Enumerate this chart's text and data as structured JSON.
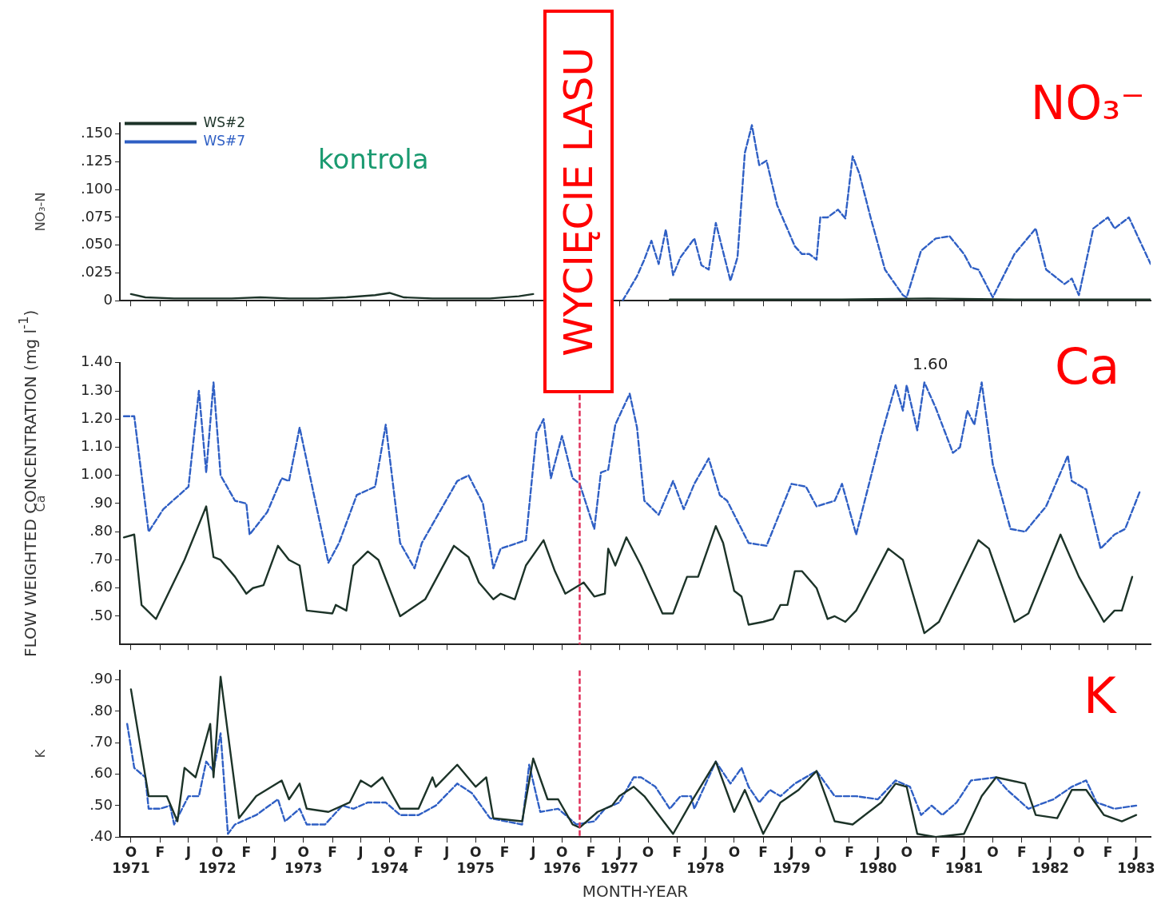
{
  "chart_data": [
    {
      "type": "line",
      "ylabel": "NO₃-N",
      "legend": "top left",
      "marker": "none",
      "tick_labels": "y",
      "annotations": [
        "NO₃⁻",
        "kontrola",
        "WYCIĘCIE LASU"
      ],
      "xlim": [
        "1971-08-15",
        "1983-08-01"
      ],
      "xticks": [
        "1971-10",
        "1972-02",
        "1972-06",
        "1972-10",
        "1973-02",
        "1973-06",
        "1973-10",
        "1974-02",
        "1974-06",
        "1974-10",
        "1975-02",
        "1975-06",
        "1975-10",
        "1976-02",
        "1976-06",
        "1976-10",
        "1977-02",
        "1977-06",
        "1977-10",
        "1978-02",
        "1978-06",
        "1978-10",
        "1979-02",
        "1979-06",
        "1979-10",
        "1980-02",
        "1980-06",
        "1980-10",
        "1981-02",
        "1981-06",
        "1981-10",
        "1982-02",
        "1982-06",
        "1982-10",
        "1983-02",
        "1983-06"
      ],
      "ylim": [
        0,
        0.16
      ],
      "yticks": [
        0,
        {
          "value": 0.025,
          "label": ".025"
        },
        {
          "value": 0.05,
          "label": ".050"
        },
        {
          "value": 0.075,
          "label": ".075"
        },
        {
          "value": 0.1,
          "label": ".100"
        },
        {
          "value": 0.125,
          "label": ".125"
        },
        {
          "value": 0.15,
          "label": ".150"
        }
      ],
      "series": [
        {
          "name": "WS#2",
          "color": "#1c3328",
          "line_style": "solid",
          "x": [
            "1971-10-01",
            "1971-12-01",
            "1972-04-01",
            "1972-08-01",
            "1972-12-01",
            "1973-04-01",
            "1973-08-01",
            "1973-12-01",
            "1974-04-01",
            "1974-08-01",
            "1974-10-01",
            "1974-12-01",
            "1975-04-01",
            "1975-08-01",
            "1975-12-01",
            "1976-04-01",
            "1976-06-01",
            "1976-08-01",
            "1976-12-01",
            "1977-04-01",
            "1978-01-01",
            "1979-01-01",
            "1980-01-01",
            "1981-01-01",
            "1982-01-01",
            "1983-01-01",
            "1983-08-01"
          ],
          "values": [
            0.006,
            0.003,
            0.002,
            0.002,
            0.002,
            0.003,
            0.002,
            0.002,
            0.003,
            0.005,
            0.007,
            0.003,
            0.002,
            0.002,
            0.002,
            0.004,
            0.006,
            null,
            null,
            null,
            0.001,
            0.001,
            0.001,
            0.002,
            0.001,
            0.001,
            0.001
          ]
        },
        {
          "name": "WS#7",
          "color": "#2f5fc4",
          "line_style": "dashed",
          "x": [
            "1977-06-15",
            "1977-08-15",
            "1977-09-15",
            "1977-10-15",
            "1977-11-15",
            "1977-12-15",
            "1978-01-15",
            "1978-02-15",
            "1978-04-15",
            "1978-05-15",
            "1978-06-15",
            "1978-07-15",
            "1978-09-15",
            "1978-10-15",
            "1978-11-15",
            "1978-12-15",
            "1979-01-15",
            "1979-02-15",
            "1979-04-01",
            "1979-06-15",
            "1979-07-15",
            "1979-08-15",
            "1979-09-15",
            "1979-10-01",
            "1979-11-01",
            "1979-12-15",
            "1980-01-15",
            "1980-02-15",
            "1980-03-15",
            "1980-05-01",
            "1980-07-01",
            "1980-09-15",
            "1980-10-01",
            "1980-12-01",
            "1981-02-01",
            "1981-04-01",
            "1981-06-01",
            "1981-07-01",
            "1981-08-01",
            "1981-10-01",
            "1982-01-01",
            "1982-04-01",
            "1982-05-15",
            "1982-08-01",
            "1982-09-01",
            "1982-10-01",
            "1982-12-01",
            "1983-02-01",
            "1983-03-01",
            "1983-05-01",
            "1983-08-01"
          ],
          "values": [
            0,
            0.022,
            0.037,
            0.054,
            0.033,
            0.064,
            0.023,
            0.039,
            0.056,
            0.032,
            0.028,
            0.07,
            0.018,
            0.039,
            0.133,
            0.158,
            0.122,
            0.126,
            0.086,
            0.049,
            0.042,
            0.042,
            0.037,
            0.075,
            0.075,
            0.082,
            0.074,
            0.13,
            0.114,
            0.075,
            0.028,
            0.005,
            0.003,
            0.045,
            0.056,
            0.058,
            0.042,
            0.03,
            0.028,
            0.003,
            0.042,
            0.065,
            0.028,
            0.015,
            0.02,
            0.005,
            0.065,
            0.075,
            0.065,
            0.075,
            0.033
          ]
        }
      ]
    },
    {
      "type": "line",
      "ylabel": "Ca",
      "marker": "none",
      "tick_labels": "y",
      "annotations": [
        "Ca",
        "1.60",
        "FLOW WEIGHTED CONCENTRATION (mg l$^{-1}$)"
      ],
      "xlim": [
        "1971-08-15",
        "1983-08-01"
      ],
      "xticks": [
        "1971-10",
        "1972-02",
        "1972-06",
        "1972-10",
        "1973-02",
        "1973-06",
        "1973-10",
        "1974-02",
        "1974-06",
        "1974-10",
        "1975-02",
        "1975-06",
        "1975-10",
        "1976-02",
        "1976-06",
        "1976-10",
        "1977-02",
        "1977-06",
        "1977-10",
        "1978-02",
        "1978-06",
        "1978-10",
        "1979-02",
        "1979-06",
        "1979-10",
        "1980-02",
        "1980-06",
        "1980-10",
        "1981-02",
        "1981-06",
        "1981-10",
        "1982-02",
        "1982-06",
        "1982-10",
        "1983-02",
        "1983-06"
      ],
      "ylim": [
        0.4,
        1.4
      ],
      "yticks": [
        {
          "value": 0.5,
          "label": ".50"
        },
        {
          "value": 0.6,
          "label": ".60"
        },
        {
          "value": 0.7,
          "label": ".70"
        },
        {
          "value": 0.8,
          "label": ".80"
        },
        {
          "value": 0.9,
          "label": ".90"
        },
        {
          "value": 1.0,
          "label": "1.00"
        },
        {
          "value": 1.1,
          "label": "1.10"
        },
        {
          "value": 1.2,
          "label": "1.20"
        },
        {
          "value": 1.3,
          "label": "1.30"
        },
        {
          "value": 1.4,
          "label": "1.40"
        }
      ],
      "ref_lines": [
        {
          "axis": "x",
          "value": "1976-12-15",
          "color": "#e0305a",
          "line_style": "dashed"
        }
      ],
      "series": [
        {
          "color": "#1c3328",
          "line_style": "solid",
          "x": [
            "1971-09-01",
            "1971-10-15",
            "1971-11-15",
            "1972-01-15",
            "1972-05-15",
            "1972-08-15",
            "1972-09-15",
            "1972-10-15",
            "1972-12-15",
            "1973-02-01",
            "1973-03-01",
            "1973-04-15",
            "1973-06-15",
            "1973-08-01",
            "1973-09-15",
            "1973-10-15",
            "1974-02-01",
            "1974-02-15",
            "1974-04-01",
            "1974-05-01",
            "1974-07-01",
            "1974-08-15",
            "1974-11-15",
            "1975-03-01",
            "1975-07-01",
            "1975-09-01",
            "1975-10-15",
            "1975-12-15",
            "1976-01-15",
            "1976-03-15",
            "1976-05-01",
            "1976-07-15",
            "1976-09-01",
            "1976-10-15",
            "1977-01-01",
            "1977-02-15",
            "1977-04-01",
            "1977-04-15",
            "1977-05-15",
            "1977-07-01",
            "1977-09-01",
            "1977-12-01",
            "1978-01-15",
            "1978-03-15",
            "1978-05-01",
            "1978-07-15",
            "1978-08-15",
            "1978-10-01",
            "1978-11-01",
            "1978-12-01",
            "1979-02-01",
            "1979-03-15",
            "1979-04-15",
            "1979-05-15",
            "1979-06-15",
            "1979-07-15",
            "1979-09-15",
            "1979-11-01",
            "1979-12-01",
            "1980-01-15",
            "1980-03-01",
            "1980-07-15",
            "1980-09-15",
            "1980-12-15",
            "1981-02-15",
            "1981-08-01",
            "1981-09-15",
            "1982-01-01",
            "1982-03-01",
            "1982-07-15",
            "1982-10-01",
            "1983-01-15",
            "1983-03-01",
            "1983-04-01",
            "1983-05-15"
          ],
          "values": [
            0.78,
            0.79,
            0.54,
            0.49,
            0.7,
            0.89,
            0.71,
            0.7,
            0.64,
            0.58,
            0.6,
            0.61,
            0.75,
            0.7,
            0.68,
            0.52,
            0.51,
            0.54,
            0.52,
            0.68,
            0.73,
            0.7,
            0.5,
            0.56,
            0.75,
            0.71,
            0.62,
            0.56,
            0.58,
            0.56,
            0.68,
            0.77,
            0.66,
            0.58,
            0.62,
            0.57,
            0.58,
            0.74,
            0.68,
            0.78,
            0.68,
            0.51,
            0.51,
            0.64,
            0.64,
            0.82,
            0.76,
            0.59,
            0.57,
            0.47,
            0.48,
            0.49,
            0.54,
            0.54,
            0.66,
            0.66,
            0.6,
            0.49,
            0.5,
            0.48,
            0.52,
            0.74,
            0.7,
            0.44,
            0.48,
            0.77,
            0.74,
            0.48,
            0.51,
            0.79,
            0.64,
            0.48,
            0.52,
            0.52,
            0.64
          ]
        },
        {
          "color": "#2f5fc4",
          "line_style": "dashed",
          "x": [
            "1971-09-01",
            "1971-10-15",
            "1971-12-15",
            "1972-02-15",
            "1972-06-01",
            "1972-07-15",
            "1972-08-15",
            "1972-09-15",
            "1972-10-15",
            "1972-12-15",
            "1973-02-01",
            "1973-02-15",
            "1973-05-01",
            "1973-07-01",
            "1973-08-01",
            "1973-09-15",
            "1974-01-15",
            "1974-03-01",
            "1974-05-15",
            "1974-08-01",
            "1974-09-15",
            "1974-11-15",
            "1975-01-15",
            "1975-02-15",
            "1975-07-15",
            "1975-09-01",
            "1975-11-01",
            "1975-12-15",
            "1976-01-15",
            "1976-05-01",
            "1976-06-15",
            "1976-07-15",
            "1976-08-15",
            "1976-10-01",
            "1976-11-15",
            "1976-12-15",
            "1977-02-15",
            "1977-03-15",
            "1977-04-15",
            "1977-05-15",
            "1977-07-15",
            "1977-08-15",
            "1977-09-15",
            "1977-11-15",
            "1978-01-15",
            "1978-03-01",
            "1978-04-15",
            "1978-06-15",
            "1978-08-01",
            "1978-09-01",
            "1978-12-01",
            "1979-02-15",
            "1979-06-01",
            "1979-08-01",
            "1979-09-15",
            "1979-12-01",
            "1980-01-01",
            "1980-03-01",
            "1980-06-15",
            "1980-08-15",
            "1980-09-15",
            "1980-10-01",
            "1980-11-15",
            "1980-12-15",
            "1981-02-01",
            "1981-04-15",
            "1981-05-15",
            "1981-06-15",
            "1981-07-15",
            "1981-08-15",
            "1981-10-01",
            "1981-12-15",
            "1982-02-15",
            "1982-05-15",
            "1982-08-15",
            "1982-09-01",
            "1982-11-01",
            "1983-01-01",
            "1983-03-01",
            "1983-04-15",
            "1983-06-15"
          ],
          "values": [
            1.21,
            1.21,
            0.8,
            0.88,
            0.96,
            1.3,
            1.01,
            1.33,
            1.0,
            0.91,
            0.9,
            0.79,
            0.87,
            0.99,
            0.98,
            1.17,
            0.69,
            0.76,
            0.93,
            0.96,
            1.18,
            0.76,
            0.67,
            0.76,
            0.98,
            1.0,
            0.9,
            0.67,
            0.74,
            0.77,
            1.15,
            1.2,
            0.99,
            1.14,
            0.99,
            0.97,
            0.81,
            1.01,
            1.02,
            1.18,
            1.29,
            1.17,
            0.91,
            0.86,
            0.98,
            0.88,
            0.97,
            1.06,
            0.93,
            0.91,
            0.76,
            0.75,
            0.97,
            0.96,
            0.89,
            0.91,
            0.97,
            0.79,
            1.14,
            1.32,
            1.23,
            1.32,
            1.16,
            1.33,
            1.24,
            1.08,
            1.1,
            1.23,
            1.18,
            1.33,
            1.04,
            0.81,
            0.8,
            0.89,
            1.07,
            0.98,
            0.95,
            0.74,
            0.79,
            0.81,
            0.94
          ]
        }
      ]
    },
    {
      "type": "line",
      "ylabel": "K",
      "xlabel": "MONTH-YEAR",
      "marker": "none",
      "annotations": [
        "K"
      ],
      "xlim": [
        "1971-08-15",
        "1983-08-01"
      ],
      "xticks": [
        {
          "value": "1971-10",
          "label": "O\n1971"
        },
        {
          "value": "1972-02",
          "label": "F"
        },
        {
          "value": "1972-06",
          "label": "J"
        },
        {
          "value": "1972-10",
          "label": "O\n1972"
        },
        {
          "value": "1973-02",
          "label": "F"
        },
        {
          "value": "1973-06",
          "label": "J"
        },
        {
          "value": "1973-10",
          "label": "O\n1973"
        },
        {
          "value": "1974-02",
          "label": "F"
        },
        {
          "value": "1974-06",
          "label": "J"
        },
        {
          "value": "1974-10",
          "label": "O\n1974"
        },
        {
          "value": "1975-02",
          "label": "F"
        },
        {
          "value": "1975-06",
          "label": "J"
        },
        {
          "value": "1975-10",
          "label": "O\n1975"
        },
        {
          "value": "1976-02",
          "label": "F"
        },
        {
          "value": "1976-06",
          "label": "J"
        },
        {
          "value": "1976-10",
          "label": "O\n1976"
        },
        {
          "value": "1977-02",
          "label": "F"
        },
        {
          "value": "1977-06",
          "label": "J\n1977"
        },
        {
          "value": "1977-10",
          "label": "O"
        },
        {
          "value": "1978-02",
          "label": "F"
        },
        {
          "value": "1978-06",
          "label": "J\n1978"
        },
        {
          "value": "1978-10",
          "label": "O"
        },
        {
          "value": "1979-02",
          "label": "F"
        },
        {
          "value": "1979-06",
          "label": "J\n1979"
        },
        {
          "value": "1979-10",
          "label": "O"
        },
        {
          "value": "1980-02",
          "label": "F"
        },
        {
          "value": "1980-06",
          "label": "J\n1980"
        },
        {
          "value": "1980-10",
          "label": "O"
        },
        {
          "value": "1981-02",
          "label": "F"
        },
        {
          "value": "1981-06",
          "label": "J\n1981"
        },
        {
          "value": "1981-10",
          "label": "O"
        },
        {
          "value": "1982-02",
          "label": "F"
        },
        {
          "value": "1982-06",
          "label": "J\n1982"
        },
        {
          "value": "1982-10",
          "label": "O"
        },
        {
          "value": "1983-02",
          "label": "F"
        },
        {
          "value": "1983-06",
          "label": "J\n1983"
        }
      ],
      "ylim": [
        0.4,
        0.93
      ],
      "yticks": [
        {
          "value": 0.4,
          "label": ".40"
        },
        {
          "value": 0.5,
          "label": ".50"
        },
        {
          "value": 0.6,
          "label": ".60"
        },
        {
          "value": 0.7,
          "label": ".70"
        },
        {
          "value": 0.8,
          "label": ".80"
        },
        {
          "value": 0.9,
          "label": ".90"
        }
      ],
      "ref_lines": [
        {
          "axis": "x",
          "value": "1976-12-15",
          "color": "#e0305a",
          "line_style": "dashed"
        }
      ],
      "series": [
        {
          "color": "#1c3328",
          "line_style": "solid",
          "x": [
            "1971-10-01",
            "1971-12-15",
            "1972-03-01",
            "1972-04-15",
            "1972-05-15",
            "1972-07-01",
            "1972-09-01",
            "1972-09-15",
            "1972-10-15",
            "1972-11-15",
            "1973-01-01",
            "1973-03-15",
            "1973-07-01",
            "1973-08-01",
            "1973-09-15",
            "1973-10-15",
            "1974-01-15",
            "1974-04-15",
            "1974-06-01",
            "1974-07-15",
            "1974-09-01",
            "1974-11-15",
            "1975-02-01",
            "1975-04-01",
            "1975-04-15",
            "1975-07-15",
            "1975-10-01",
            "1975-11-15",
            "1975-12-15",
            "1976-04-15",
            "1976-06-01",
            "1976-08-01",
            "1976-09-15",
            "1976-11-15",
            "1976-12-15",
            "1977-03-01",
            "1977-05-01",
            "1977-06-01",
            "1977-08-01",
            "1977-09-15",
            "1978-01-15",
            "1978-04-01",
            "1978-07-15",
            "1978-10-01",
            "1978-11-15",
            "1979-02-01",
            "1979-04-15",
            "1979-07-01",
            "1979-09-15",
            "1979-12-01",
            "1980-02-15",
            "1980-06-15",
            "1980-08-15",
            "1980-10-01",
            "1980-11-15",
            "1981-02-01",
            "1981-06-01",
            "1981-08-15",
            "1981-10-15",
            "1982-02-15",
            "1982-04-01",
            "1982-07-01",
            "1982-09-01",
            "1982-11-01",
            "1983-01-15",
            "1983-04-01",
            "1983-06-01"
          ],
          "values": [
            0.87,
            0.53,
            0.53,
            0.45,
            0.62,
            0.59,
            0.76,
            0.59,
            0.91,
            0.73,
            0.46,
            0.53,
            0.58,
            0.52,
            0.57,
            0.49,
            0.48,
            0.51,
            0.58,
            0.56,
            0.59,
            0.49,
            0.49,
            0.59,
            0.56,
            0.63,
            0.56,
            0.59,
            0.46,
            0.45,
            0.65,
            0.52,
            0.52,
            0.44,
            0.43,
            0.48,
            0.5,
            0.53,
            0.56,
            0.53,
            0.41,
            0.51,
            0.64,
            0.48,
            0.55,
            0.41,
            0.51,
            0.55,
            0.61,
            0.45,
            0.44,
            0.51,
            0.57,
            0.56,
            0.41,
            0.4,
            0.41,
            0.53,
            0.59,
            0.57,
            0.47,
            0.46,
            0.55,
            0.55,
            0.47,
            0.45,
            0.47
          ]
        },
        {
          "color": "#2f5fc4",
          "line_style": "dashed",
          "x": [
            "1971-09-15",
            "1971-10-15",
            "1971-12-01",
            "1971-12-15",
            "1972-02-01",
            "1972-03-15",
            "1972-04-01",
            "1972-06-01",
            "1972-07-15",
            "1972-08-15",
            "1972-09-15",
            "1972-10-15",
            "1972-11-15",
            "1972-12-15",
            "1973-03-15",
            "1973-06-15",
            "1973-07-15",
            "1973-09-15",
            "1973-10-15",
            "1974-01-01",
            "1974-03-15",
            "1974-05-01",
            "1974-07-01",
            "1974-09-15",
            "1974-11-15",
            "1975-02-01",
            "1975-04-15",
            "1975-07-15",
            "1975-09-15",
            "1975-12-01",
            "1976-04-15",
            "1976-05-15",
            "1976-07-01",
            "1976-09-15",
            "1976-12-01",
            "1977-02-15",
            "1977-04-01",
            "1977-06-01",
            "1977-08-01",
            "1977-09-01",
            "1977-11-01",
            "1978-01-01",
            "1978-02-15",
            "1978-04-01",
            "1978-04-15",
            "1978-07-15",
            "1978-09-15",
            "1978-11-01",
            "1978-12-01",
            "1979-01-15",
            "1979-03-01",
            "1979-04-15",
            "1979-06-15",
            "1979-09-15",
            "1979-12-01",
            "1980-03-01",
            "1980-06-01",
            "1980-08-15",
            "1980-10-15",
            "1980-12-01",
            "1981-01-15",
            "1981-03-01",
            "1981-05-01",
            "1981-07-01",
            "1981-10-15",
            "1981-12-01",
            "1982-03-01",
            "1982-06-15",
            "1982-09-01",
            "1982-11-01",
            "1982-12-15",
            "1983-03-01",
            "1983-06-01"
          ],
          "values": [
            0.76,
            0.62,
            0.59,
            0.49,
            0.49,
            0.5,
            0.44,
            0.53,
            0.53,
            0.64,
            0.61,
            0.73,
            0.41,
            0.44,
            0.47,
            0.52,
            0.45,
            0.49,
            0.44,
            0.44,
            0.5,
            0.49,
            0.51,
            0.51,
            0.47,
            0.47,
            0.5,
            0.57,
            0.54,
            0.46,
            0.44,
            0.63,
            0.48,
            0.49,
            0.44,
            0.45,
            0.49,
            0.51,
            0.59,
            0.59,
            0.56,
            0.49,
            0.53,
            0.53,
            0.49,
            0.64,
            0.57,
            0.62,
            0.56,
            0.51,
            0.55,
            0.53,
            0.57,
            0.61,
            0.53,
            0.53,
            0.52,
            0.58,
            0.56,
            0.47,
            0.5,
            0.47,
            0.51,
            0.58,
            0.59,
            0.55,
            0.49,
            0.52,
            0.56,
            0.58,
            0.51,
            0.49,
            0.5
          ]
        }
      ]
    }
  ]
}
